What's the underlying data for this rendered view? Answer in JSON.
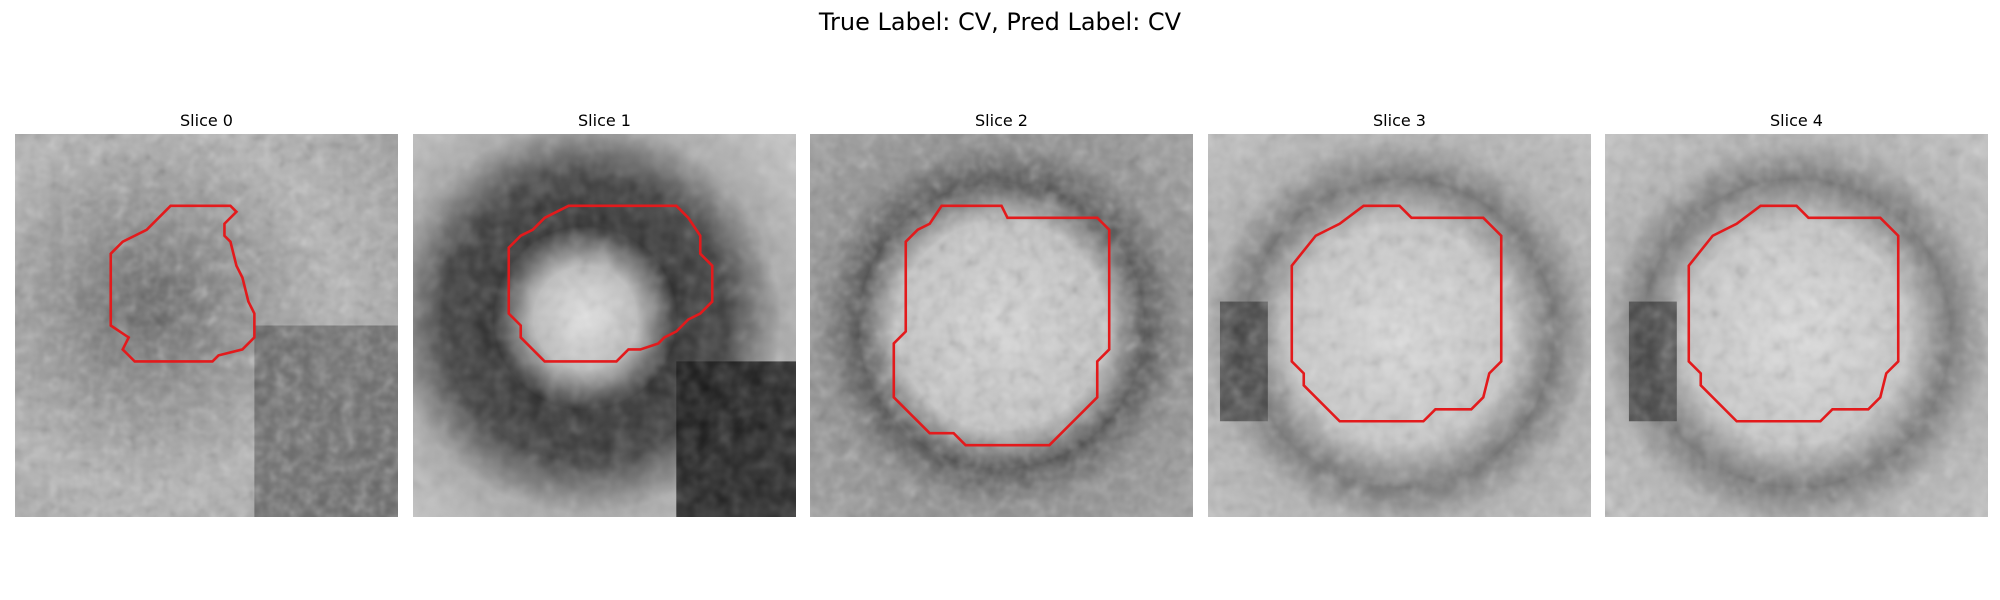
{
  "figure": {
    "title": "True Label: CV, Pred Label: CV"
  },
  "overlay_color": "#e31a1c",
  "slices": [
    {
      "title": "Slice 0"
    },
    {
      "title": "Slice 1"
    },
    {
      "title": "Slice 2"
    },
    {
      "title": "Slice 3"
    },
    {
      "title": "Slice 4"
    }
  ]
}
